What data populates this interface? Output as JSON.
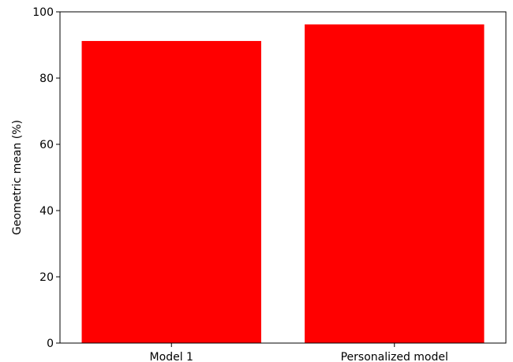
{
  "chart_data": {
    "type": "bar",
    "categories": [
      "Model 1",
      "Personalized model"
    ],
    "values": [
      91.2,
      96.2
    ],
    "title": "",
    "xlabel": "",
    "ylabel": "Geometric mean (%)",
    "ylim": [
      0,
      100
    ],
    "yticks": [
      0,
      20,
      40,
      60,
      80,
      100
    ],
    "grid": false,
    "bar_color": "#ff0000"
  }
}
